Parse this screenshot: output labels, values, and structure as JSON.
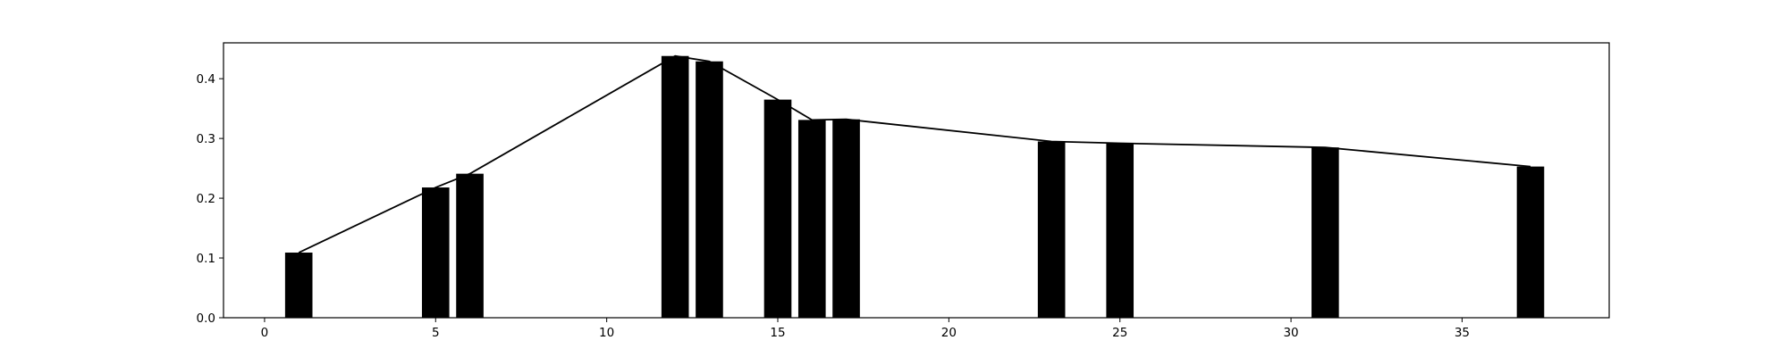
{
  "chart_data": {
    "type": "bar",
    "title": "",
    "xlabel": "",
    "ylabel": "",
    "xlim": [
      -1.2,
      39.3
    ],
    "ylim": [
      0,
      0.46
    ],
    "grid": false,
    "legend": "none",
    "colors": {
      "bars": "#000000",
      "line": "#000000",
      "axes": "#000000",
      "background": "#ffffff"
    },
    "bar_width": 0.8,
    "x_ticks": [
      0,
      5,
      10,
      15,
      20,
      25,
      30,
      35
    ],
    "x_tick_labels": [
      "0",
      "5",
      "10",
      "15",
      "20",
      "25",
      "30",
      "35"
    ],
    "y_ticks": [
      0.0,
      0.1,
      0.2,
      0.3,
      0.4
    ],
    "y_tick_labels": [
      "0.0",
      "0.1",
      "0.2",
      "0.3",
      "0.4"
    ],
    "series": [
      {
        "type": "bar",
        "x": [
          1,
          5,
          6,
          12,
          13,
          15,
          16,
          17,
          23,
          25,
          31,
          37
        ],
        "values": [
          0.109,
          0.218,
          0.241,
          0.438,
          0.429,
          0.365,
          0.331,
          0.332,
          0.295,
          0.292,
          0.285,
          0.253
        ]
      },
      {
        "type": "line",
        "x": [
          1,
          5,
          6,
          12,
          13,
          15,
          16,
          17,
          23,
          25,
          31,
          37
        ],
        "values": [
          0.109,
          0.218,
          0.241,
          0.438,
          0.429,
          0.365,
          0.331,
          0.332,
          0.295,
          0.292,
          0.285,
          0.253
        ]
      }
    ]
  }
}
